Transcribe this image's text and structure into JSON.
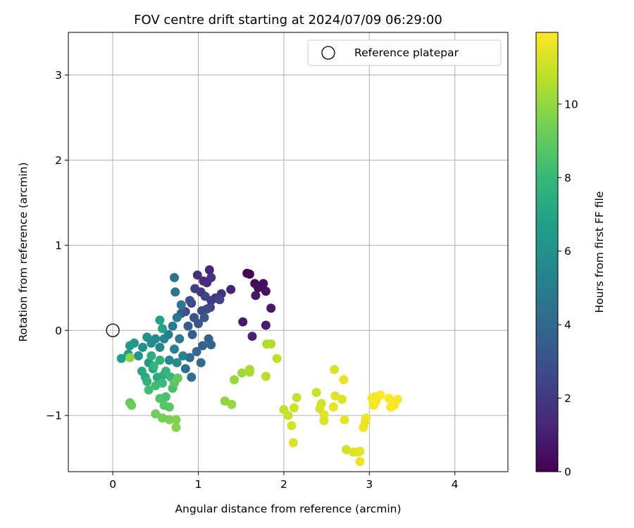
{
  "chart_data": {
    "type": "scatter",
    "title": "FOV centre drift starting at 2024/07/09 06:29:00",
    "xlabel": "Angular distance from reference (arcmin)",
    "ylabel": "Rotation from reference (arcmin)",
    "xlim": [
      -0.52,
      4.62
    ],
    "ylim": [
      -1.66,
      3.5
    ],
    "xticks": [
      0,
      1,
      2,
      3,
      4
    ],
    "yticks": [
      -1,
      0,
      1,
      2,
      3
    ],
    "xtick_labels": [
      "0",
      "1",
      "2",
      "3",
      "4"
    ],
    "ytick_labels": [
      "−1",
      "0",
      "1",
      "2",
      "3"
    ],
    "grid": true,
    "legend": {
      "placement": "top-right",
      "label": "Reference platepar"
    },
    "reference": {
      "x": 0,
      "y": 0
    },
    "colorbar": {
      "label": "Hours from first FF file",
      "range": [
        0,
        11.95
      ],
      "ticks": [
        0,
        2,
        4,
        6,
        8,
        10
      ],
      "tick_labels": [
        "0",
        "2",
        "4",
        "6",
        "8",
        "10"
      ],
      "colormap": [
        "#440154",
        "#482878",
        "#3e4989",
        "#31688e",
        "#26828e",
        "#1f9e89",
        "#35b779",
        "#6ece58",
        "#b5de2b",
        "#fde725"
      ]
    },
    "points": [
      [
        1.57,
        0.67,
        0.1
      ],
      [
        1.6,
        0.66,
        0.2
      ],
      [
        1.66,
        0.55,
        0.3
      ],
      [
        1.7,
        0.5,
        0.4
      ],
      [
        1.76,
        0.55,
        0.5
      ],
      [
        1.79,
        0.46,
        0.6
      ],
      [
        1.67,
        0.41,
        0.7
      ],
      [
        1.85,
        0.26,
        0.8
      ],
      [
        1.52,
        0.1,
        0.9
      ],
      [
        1.79,
        0.06,
        1.0
      ],
      [
        1.63,
        -0.07,
        1.1
      ],
      [
        1.38,
        0.48,
        1.2
      ],
      [
        1.13,
        0.71,
        1.3
      ],
      [
        1.06,
        0.58,
        1.4
      ],
      [
        1.1,
        0.56,
        1.5
      ],
      [
        0.99,
        0.65,
        1.6
      ],
      [
        1.15,
        0.62,
        1.7
      ],
      [
        1.27,
        0.43,
        1.8
      ],
      [
        1.2,
        0.38,
        1.9
      ],
      [
        1.03,
        0.45,
        2.0
      ],
      [
        1.15,
        0.35,
        2.1
      ],
      [
        0.96,
        0.49,
        2.2
      ],
      [
        1.08,
        0.4,
        2.3
      ],
      [
        1.14,
        0.27,
        2.4
      ],
      [
        1.25,
        0.36,
        2.5
      ],
      [
        0.92,
        0.32,
        2.6
      ],
      [
        1.04,
        0.23,
        2.7
      ],
      [
        1.1,
        0.25,
        2.8
      ],
      [
        0.9,
        0.35,
        2.9
      ],
      [
        0.85,
        0.22,
        3.0
      ],
      [
        0.95,
        0.15,
        3.1
      ],
      [
        1.0,
        0.08,
        3.2
      ],
      [
        1.07,
        0.15,
        3.3
      ],
      [
        0.8,
        0.2,
        3.4
      ],
      [
        0.88,
        0.05,
        3.5
      ],
      [
        0.93,
        -0.05,
        3.6
      ],
      [
        1.12,
        -0.1,
        3.7
      ],
      [
        1.05,
        -0.18,
        3.8
      ],
      [
        1.15,
        -0.17,
        3.9
      ],
      [
        0.98,
        -0.25,
        4.0
      ],
      [
        0.9,
        -0.32,
        4.1
      ],
      [
        1.03,
        -0.38,
        4.2
      ],
      [
        0.85,
        -0.45,
        4.3
      ],
      [
        0.92,
        -0.55,
        4.4
      ],
      [
        0.72,
        0.62,
        4.5
      ],
      [
        0.73,
        0.45,
        4.6
      ],
      [
        0.8,
        0.3,
        4.7
      ],
      [
        0.75,
        0.15,
        4.8
      ],
      [
        0.7,
        0.05,
        4.9
      ],
      [
        0.78,
        -0.1,
        5.0
      ],
      [
        0.65,
        -0.05,
        5.1
      ],
      [
        0.72,
        -0.22,
        5.2
      ],
      [
        0.82,
        -0.3,
        5.3
      ],
      [
        0.6,
        -0.1,
        5.4
      ],
      [
        0.55,
        -0.2,
        5.5
      ],
      [
        0.66,
        -0.35,
        5.6
      ],
      [
        0.75,
        -0.38,
        5.7
      ],
      [
        0.5,
        -0.1,
        5.8
      ],
      [
        0.45,
        -0.15,
        5.9
      ],
      [
        0.4,
        -0.08,
        6.0
      ],
      [
        0.35,
        -0.2,
        6.1
      ],
      [
        0.3,
        -0.3,
        6.2
      ],
      [
        0.42,
        -0.38,
        6.3
      ],
      [
        0.25,
        -0.15,
        6.4
      ],
      [
        0.2,
        -0.18,
        6.5
      ],
      [
        0.18,
        -0.28,
        6.6
      ],
      [
        0.1,
        -0.33,
        6.7
      ],
      [
        0.55,
        0.12,
        6.8
      ],
      [
        0.58,
        0.02,
        6.9
      ],
      [
        0.47,
        -0.45,
        7.0
      ],
      [
        0.38,
        -0.55,
        7.1
      ],
      [
        0.34,
        -0.48,
        7.2
      ],
      [
        0.52,
        -0.55,
        7.3
      ],
      [
        0.6,
        -0.52,
        7.4
      ],
      [
        0.45,
        -0.3,
        7.5
      ],
      [
        0.55,
        -0.35,
        7.6
      ],
      [
        0.4,
        -0.6,
        7.7
      ],
      [
        0.48,
        -0.42,
        7.8
      ],
      [
        0.62,
        -0.48,
        7.9
      ],
      [
        0.68,
        -0.55,
        8.0
      ],
      [
        0.58,
        -0.62,
        8.1
      ],
      [
        0.5,
        -0.65,
        8.2
      ],
      [
        0.42,
        -0.7,
        8.3
      ],
      [
        0.7,
        -0.68,
        8.4
      ],
      [
        0.62,
        -0.78,
        8.5
      ],
      [
        0.55,
        -0.8,
        8.6
      ],
      [
        0.6,
        -0.88,
        8.7
      ],
      [
        0.66,
        -0.9,
        8.8
      ],
      [
        0.72,
        -0.62,
        8.9
      ],
      [
        0.76,
        -0.56,
        9.0
      ],
      [
        0.2,
        -0.85,
        9.1
      ],
      [
        0.22,
        -0.88,
        9.2
      ],
      [
        0.5,
        -0.98,
        9.3
      ],
      [
        0.58,
        -1.03,
        9.4
      ],
      [
        0.66,
        -1.05,
        9.5
      ],
      [
        0.74,
        -1.05,
        9.6
      ],
      [
        0.74,
        -1.14,
        9.7
      ],
      [
        0.2,
        -0.32,
        9.8
      ],
      [
        1.31,
        -0.83,
        9.9
      ],
      [
        1.39,
        -0.87,
        10.0
      ],
      [
        1.42,
        -0.58,
        10.1
      ],
      [
        1.51,
        -0.5,
        10.2
      ],
      [
        1.6,
        -0.46,
        10.3
      ],
      [
        1.6,
        -0.49,
        10.4
      ],
      [
        1.8,
        -0.16,
        10.5
      ],
      [
        1.85,
        -0.16,
        10.6
      ],
      [
        1.79,
        -0.54,
        10.7
      ],
      [
        1.92,
        -0.33,
        10.8
      ],
      [
        2.0,
        -0.93,
        10.9
      ],
      [
        2.05,
        -1.0,
        11.0
      ],
      [
        2.12,
        -0.91,
        11.1
      ],
      [
        2.09,
        -1.12,
        11.2
      ],
      [
        2.11,
        -1.32,
        11.3
      ],
      [
        2.15,
        -0.79,
        10.9
      ],
      [
        2.38,
        -0.73,
        11.0
      ],
      [
        2.44,
        -0.86,
        11.1
      ],
      [
        2.42,
        -0.92,
        11.2
      ],
      [
        2.47,
        -1.06,
        11.3
      ],
      [
        2.47,
        -0.99,
        11.4
      ],
      [
        2.59,
        -0.46,
        11.3
      ],
      [
        2.6,
        -0.77,
        11.4
      ],
      [
        2.58,
        -0.9,
        11.5
      ],
      [
        2.68,
        -0.81,
        11.4
      ],
      [
        2.7,
        -0.58,
        11.5
      ],
      [
        2.71,
        -1.05,
        11.5
      ],
      [
        2.73,
        -1.4,
        11.2
      ],
      [
        2.81,
        -1.43,
        11.4
      ],
      [
        2.86,
        -1.43,
        11.3
      ],
      [
        2.89,
        -1.42,
        11.5
      ],
      [
        2.89,
        -1.54,
        11.6
      ],
      [
        2.93,
        -1.14,
        11.7
      ],
      [
        2.95,
        -1.07,
        11.6
      ],
      [
        2.96,
        -1.03,
        11.7
      ],
      [
        3.03,
        -0.8,
        11.8
      ],
      [
        3.05,
        -0.88,
        11.8
      ],
      [
        3.08,
        -0.83,
        11.9
      ],
      [
        3.06,
        -0.78,
        11.8
      ],
      [
        3.13,
        -0.76,
        11.9
      ],
      [
        3.23,
        -0.8,
        11.9
      ],
      [
        3.25,
        -0.9,
        11.9
      ],
      [
        3.29,
        -0.88,
        11.9
      ],
      [
        3.33,
        -0.81,
        11.9
      ]
    ]
  }
}
